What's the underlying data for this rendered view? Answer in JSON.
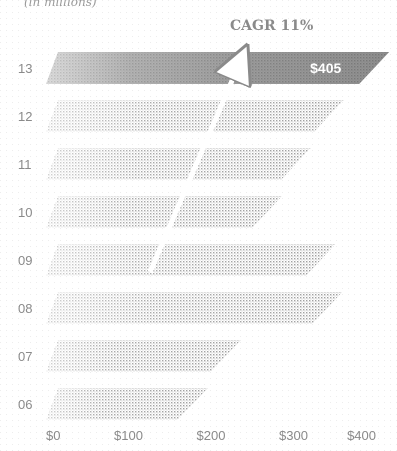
{
  "chart_data": {
    "type": "bar",
    "orientation": "horizontal",
    "categories": [
      "06",
      "07",
      "08",
      "09",
      "10",
      "11",
      "12",
      "13"
    ],
    "values": [
      185,
      225,
      348,
      340,
      275,
      310,
      350,
      405
    ],
    "xlim": [
      0,
      400
    ],
    "x_ticks": [
      "$0",
      "$100",
      "$200",
      "$300",
      "$400"
    ],
    "unit_label": "(in millions)",
    "annotation": "CAGR 11%",
    "value_label": "$405",
    "highlight_category": "13",
    "grid": false
  },
  "colors": {
    "highlight_bar": "#6e6e6e",
    "bar": "#c8c8c8",
    "text": "#8a8a8a"
  }
}
